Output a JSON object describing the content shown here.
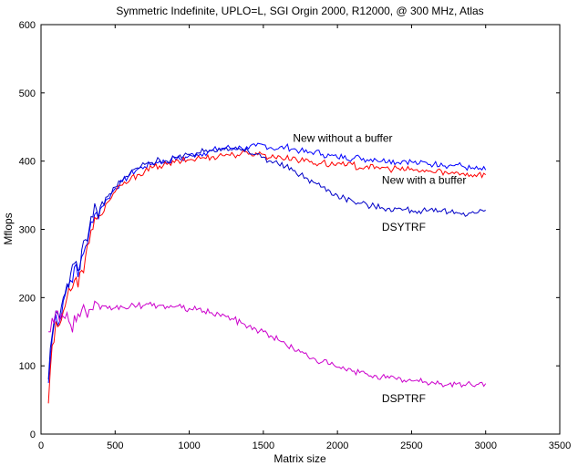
{
  "chart_data": {
    "type": "line",
    "title": "Symmetric Indefinite, UPLO=L, SGI Orgin 2000, R12000, @ 300 MHz, Atlas",
    "xlabel": "Matrix size",
    "ylabel": "Mflops",
    "xlim": [
      0,
      3500
    ],
    "ylim": [
      0,
      600
    ],
    "xticks": [
      0,
      500,
      1000,
      1500,
      2000,
      2500,
      3000,
      3500
    ],
    "yticks": [
      0,
      100,
      200,
      300,
      400,
      500,
      600
    ],
    "grid": false,
    "series": [
      {
        "name": "New without a buffer",
        "color": "#0000ff",
        "x": [
          50,
          75,
          100,
          125,
          150,
          175,
          200,
          225,
          250,
          275,
          300,
          325,
          350,
          375,
          400,
          450,
          500,
          550,
          600,
          650,
          700,
          750,
          800,
          850,
          900,
          950,
          1000,
          1050,
          1100,
          1150,
          1200,
          1250,
          1300,
          1350,
          1400,
          1450,
          1500,
          1550,
          1600,
          1650,
          1700,
          1750,
          1800,
          1850,
          1900,
          1950,
          2000,
          2050,
          2100,
          2150,
          2200,
          2250,
          2300,
          2350,
          2400,
          2450,
          2500,
          2550,
          2600,
          2650,
          2700,
          2750,
          2800,
          2850,
          2900,
          2950,
          3000
        ],
        "values": [
          75,
          140,
          175,
          165,
          195,
          215,
          225,
          245,
          230,
          260,
          275,
          295,
          310,
          325,
          330,
          345,
          360,
          370,
          380,
          388,
          392,
          396,
          400,
          398,
          405,
          402,
          408,
          410,
          412,
          415,
          418,
          420,
          419,
          420,
          418,
          422,
          424,
          420,
          418,
          421,
          418,
          415,
          412,
          414,
          410,
          408,
          405,
          408,
          403,
          406,
          402,
          404,
          400,
          402,
          398,
          401,
          399,
          396,
          398,
          395,
          397,
          393,
          395,
          392,
          389,
          388,
          387
        ]
      },
      {
        "name": "New with a buffer",
        "color": "#ff0000",
        "x": [
          50,
          75,
          100,
          125,
          150,
          175,
          200,
          225,
          250,
          275,
          300,
          325,
          350,
          375,
          400,
          450,
          500,
          550,
          600,
          650,
          700,
          750,
          800,
          850,
          900,
          950,
          1000,
          1050,
          1100,
          1150,
          1200,
          1250,
          1300,
          1350,
          1400,
          1450,
          1500,
          1550,
          1600,
          1650,
          1700,
          1750,
          1800,
          1850,
          1900,
          1950,
          2000,
          2050,
          2100,
          2150,
          2200,
          2250,
          2300,
          2350,
          2400,
          2450,
          2500,
          2550,
          2600,
          2650,
          2700,
          2750,
          2800,
          2850,
          2900,
          2950,
          3000
        ],
        "values": [
          45,
          130,
          165,
          160,
          180,
          200,
          210,
          225,
          215,
          240,
          260,
          280,
          300,
          315,
          320,
          340,
          355,
          365,
          372,
          380,
          385,
          390,
          393,
          395,
          398,
          400,
          402,
          404,
          405,
          406,
          408,
          410,
          409,
          411,
          410,
          412,
          410,
          405,
          408,
          403,
          406,
          400,
          402,
          396,
          399,
          394,
          397,
          393,
          395,
          390,
          393,
          389,
          391,
          388,
          390,
          386,
          389,
          384,
          387,
          383,
          386,
          381,
          384,
          382,
          380,
          381,
          380
        ]
      },
      {
        "name": "DSYTRF",
        "color": "#0000c8",
        "x": [
          50,
          75,
          100,
          125,
          150,
          175,
          200,
          225,
          250,
          275,
          300,
          325,
          350,
          375,
          400,
          450,
          500,
          550,
          600,
          650,
          700,
          750,
          800,
          850,
          900,
          950,
          1000,
          1050,
          1100,
          1150,
          1200,
          1250,
          1300,
          1350,
          1400,
          1450,
          1500,
          1550,
          1600,
          1650,
          1700,
          1750,
          1800,
          1850,
          1900,
          1950,
          2000,
          2050,
          2100,
          2150,
          2200,
          2250,
          2300,
          2350,
          2400,
          2450,
          2500,
          2550,
          2600,
          2650,
          2700,
          2750,
          2800,
          2850,
          2900,
          2950,
          3000
        ],
        "values": [
          80,
          145,
          180,
          170,
          200,
          220,
          235,
          250,
          240,
          270,
          285,
          300,
          318,
          328,
          333,
          348,
          362,
          372,
          382,
          390,
          395,
          398,
          402,
          400,
          406,
          404,
          410,
          412,
          414,
          416,
          419,
          420,
          418,
          416,
          414,
          410,
          406,
          400,
          396,
          392,
          386,
          380,
          374,
          368,
          362,
          356,
          350,
          346,
          342,
          338,
          336,
          334,
          332,
          331,
          330,
          329,
          328,
          327,
          327,
          326,
          326,
          325,
          325,
          324,
          324,
          325,
          328
        ]
      },
      {
        "name": "DSPTRF",
        "color": "#cc00cc",
        "x": [
          50,
          75,
          100,
          125,
          150,
          175,
          200,
          250,
          300,
          350,
          400,
          450,
          500,
          550,
          600,
          650,
          700,
          750,
          800,
          850,
          900,
          950,
          1000,
          1050,
          1100,
          1150,
          1200,
          1250,
          1300,
          1350,
          1400,
          1450,
          1500,
          1550,
          1600,
          1650,
          1700,
          1750,
          1800,
          1850,
          1900,
          1950,
          2000,
          2050,
          2100,
          2150,
          2200,
          2250,
          2300,
          2350,
          2400,
          2450,
          2500,
          2550,
          2600,
          2650,
          2700,
          2750,
          2800,
          2850,
          2900,
          2950,
          3000
        ],
        "values": [
          150,
          170,
          180,
          165,
          172,
          178,
          160,
          176,
          180,
          182,
          183,
          184,
          185,
          186,
          187,
          188,
          189,
          188,
          189,
          187,
          186,
          185,
          184,
          182,
          180,
          178,
          176,
          172,
          168,
          163,
          158,
          154,
          150,
          144,
          138,
          132,
          126,
          120,
          114,
          110,
          106,
          102,
          98,
          95,
          92,
          90,
          88,
          86,
          84,
          82,
          80,
          79,
          78,
          77,
          76,
          75,
          74,
          73,
          73,
          72,
          73,
          73,
          74
        ]
      }
    ],
    "annotations": [
      {
        "text": "New without a buffer",
        "x": 1700,
        "y": 428
      },
      {
        "text": "New with a buffer",
        "x": 2300,
        "y": 367
      },
      {
        "text": "DSYTRF",
        "x": 2300,
        "y": 298
      },
      {
        "text": "DSPTRF",
        "x": 2300,
        "y": 47
      }
    ]
  }
}
